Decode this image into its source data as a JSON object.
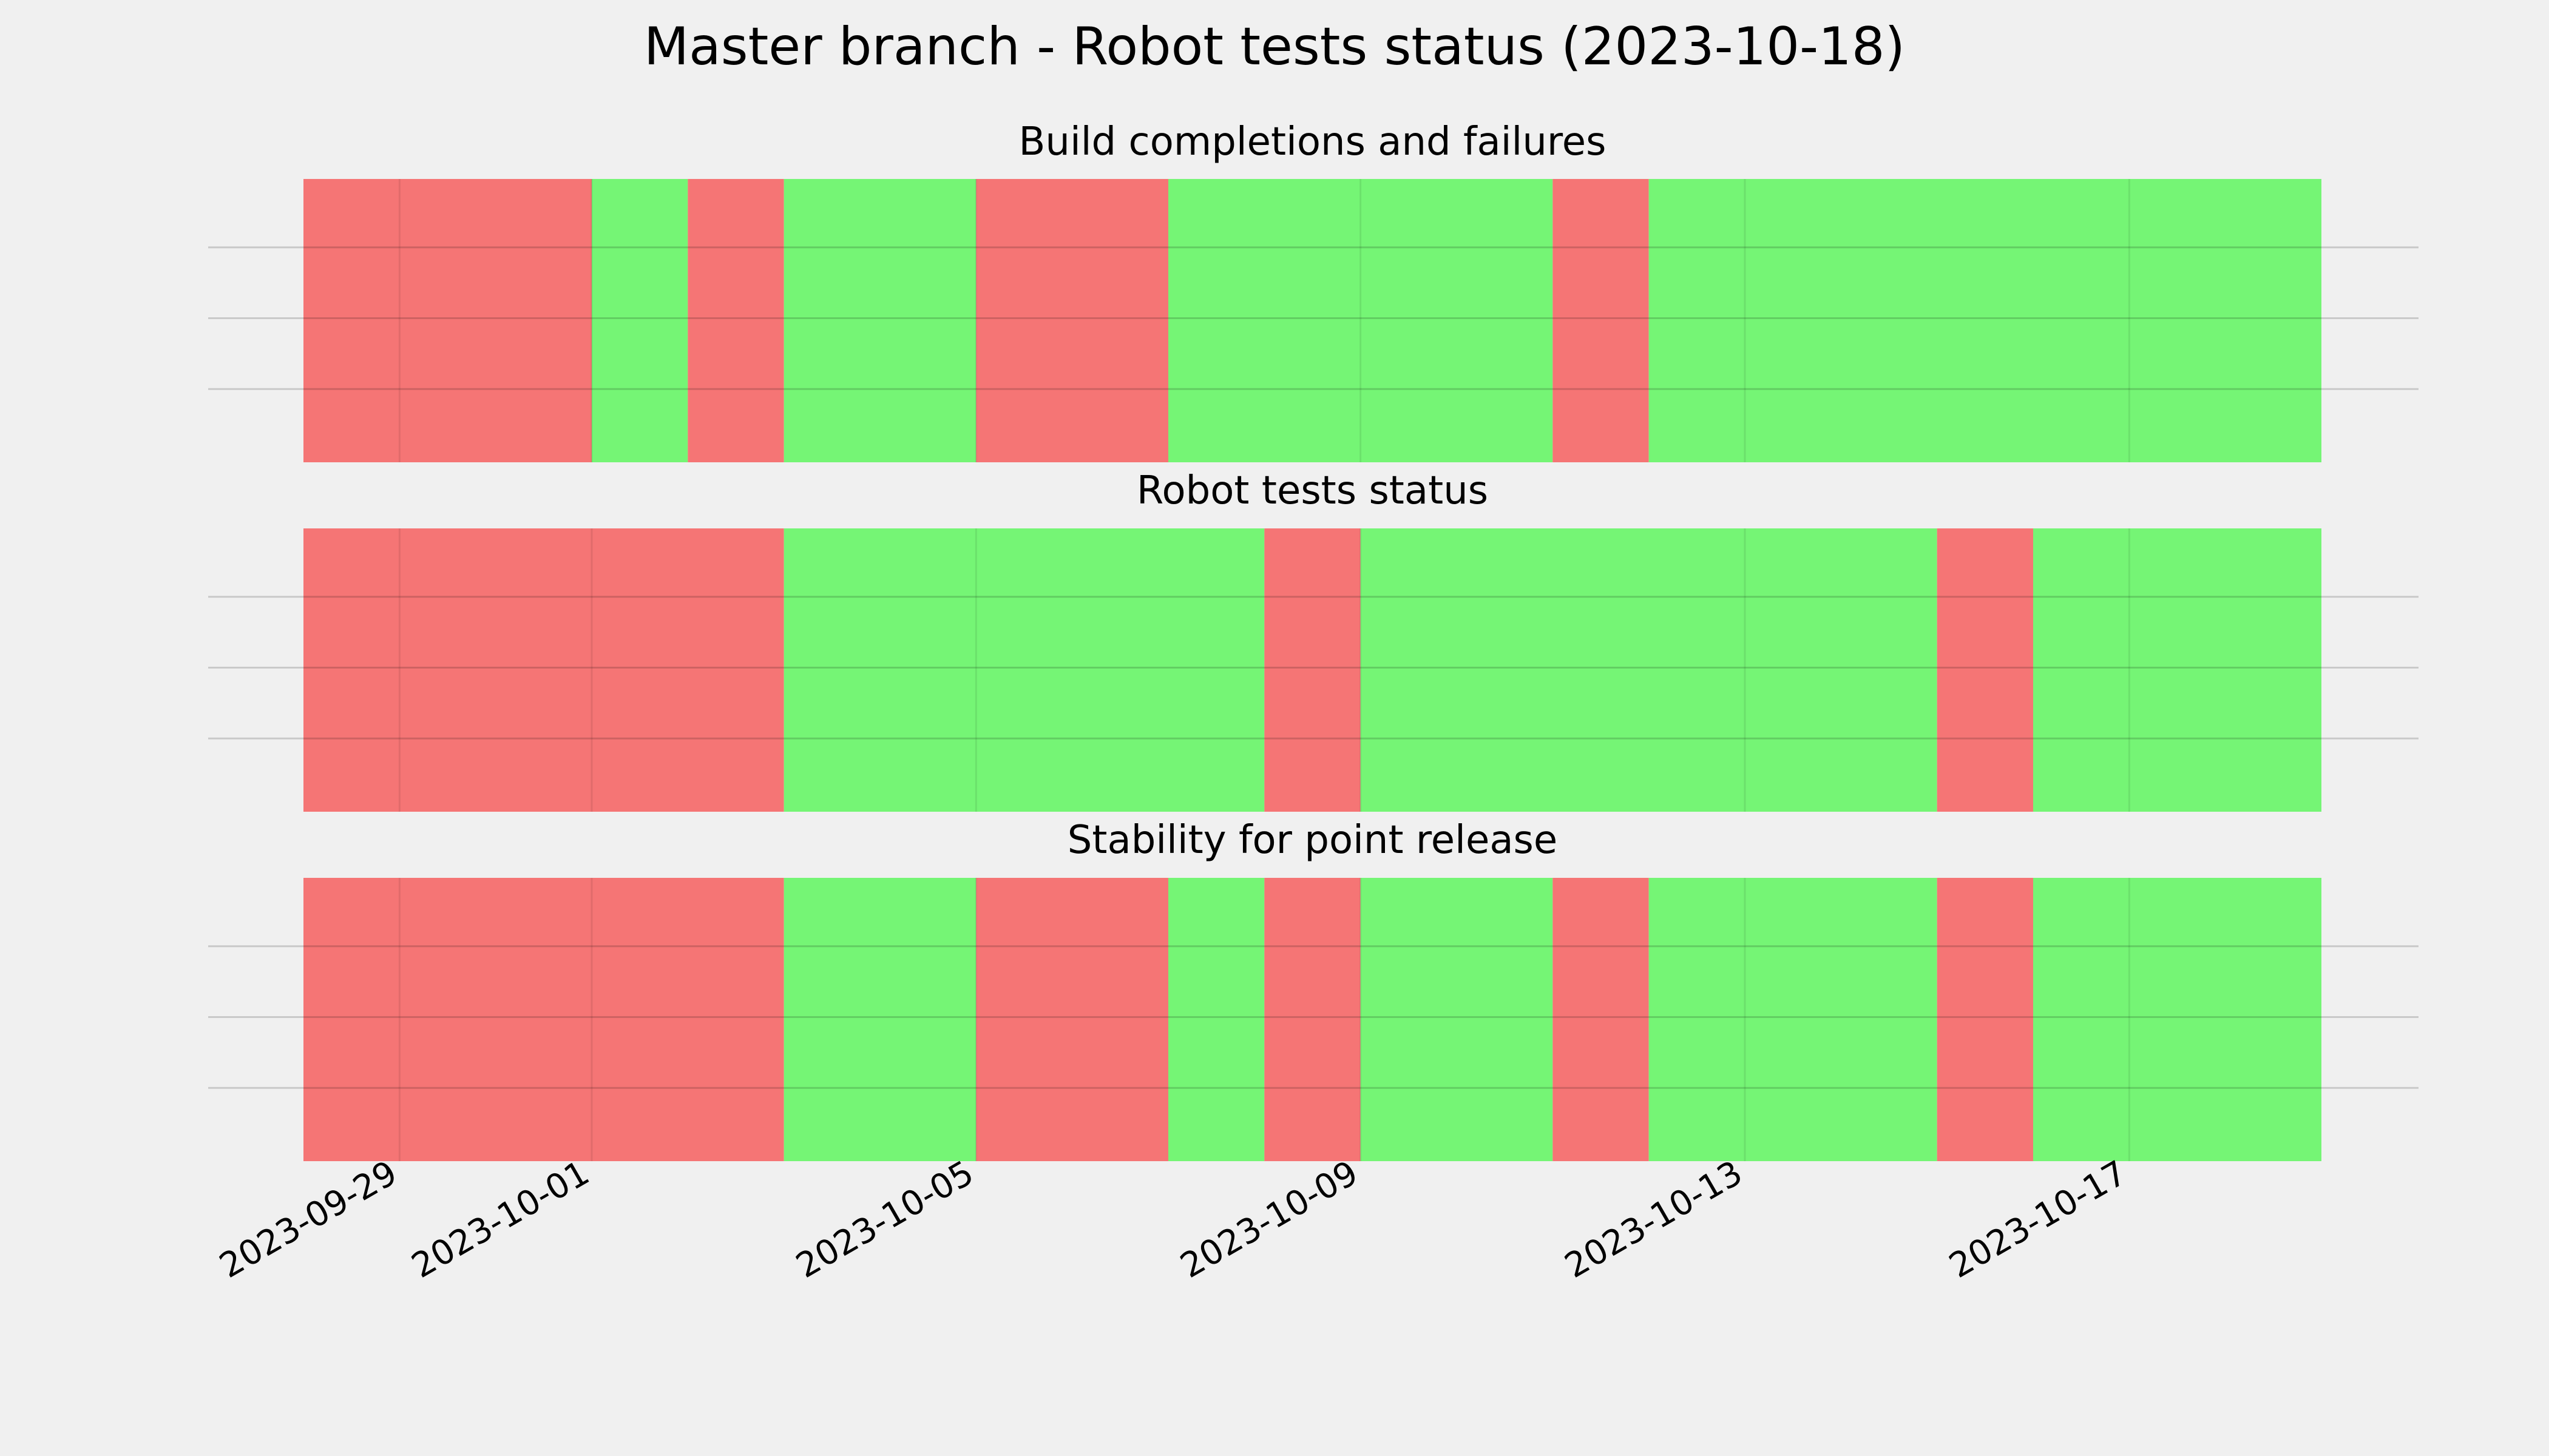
{
  "chart_data": {
    "type": "timeline-status",
    "title": "Master branch - Robot tests status (2023-10-18)",
    "date_range": [
      "2023-09-28",
      "2023-10-19"
    ],
    "x_ticks": [
      "2023-09-29",
      "2023-10-01",
      "2023-10-05",
      "2023-10-09",
      "2023-10-13",
      "2023-10-17"
    ],
    "grid": true,
    "colors": {
      "pass": "#75f575",
      "fail": "#f57575",
      "background": "#f0f0f0"
    },
    "panels": [
      {
        "title": "Build completions and failures",
        "segments": [
          {
            "start": "2023-09-28",
            "end": "2023-10-01",
            "status": "fail"
          },
          {
            "start": "2023-10-01",
            "end": "2023-10-02",
            "status": "pass"
          },
          {
            "start": "2023-10-02",
            "end": "2023-10-03",
            "status": "fail"
          },
          {
            "start": "2023-10-03",
            "end": "2023-10-05",
            "status": "pass"
          },
          {
            "start": "2023-10-05",
            "end": "2023-10-07",
            "status": "fail"
          },
          {
            "start": "2023-10-07",
            "end": "2023-10-11",
            "status": "pass"
          },
          {
            "start": "2023-10-11",
            "end": "2023-10-12",
            "status": "fail"
          },
          {
            "start": "2023-10-12",
            "end": "2023-10-19",
            "status": "pass"
          }
        ]
      },
      {
        "title": "Robot tests status",
        "segments": [
          {
            "start": "2023-09-28",
            "end": "2023-10-03",
            "status": "fail"
          },
          {
            "start": "2023-10-03",
            "end": "2023-10-08",
            "status": "pass"
          },
          {
            "start": "2023-10-08",
            "end": "2023-10-09",
            "status": "fail"
          },
          {
            "start": "2023-10-09",
            "end": "2023-10-15",
            "status": "pass"
          },
          {
            "start": "2023-10-15",
            "end": "2023-10-16",
            "status": "fail"
          },
          {
            "start": "2023-10-16",
            "end": "2023-10-19",
            "status": "pass"
          }
        ]
      },
      {
        "title": "Stability for point release",
        "segments": [
          {
            "start": "2023-09-28",
            "end": "2023-10-03",
            "status": "fail"
          },
          {
            "start": "2023-10-03",
            "end": "2023-10-05",
            "status": "pass"
          },
          {
            "start": "2023-10-05",
            "end": "2023-10-07",
            "status": "fail"
          },
          {
            "start": "2023-10-07",
            "end": "2023-10-08",
            "status": "pass"
          },
          {
            "start": "2023-10-08",
            "end": "2023-10-09",
            "status": "fail"
          },
          {
            "start": "2023-10-09",
            "end": "2023-10-11",
            "status": "pass"
          },
          {
            "start": "2023-10-11",
            "end": "2023-10-12",
            "status": "fail"
          },
          {
            "start": "2023-10-12",
            "end": "2023-10-15",
            "status": "pass"
          },
          {
            "start": "2023-10-15",
            "end": "2023-10-16",
            "status": "fail"
          },
          {
            "start": "2023-10-16",
            "end": "2023-10-19",
            "status": "pass"
          }
        ]
      }
    ]
  }
}
